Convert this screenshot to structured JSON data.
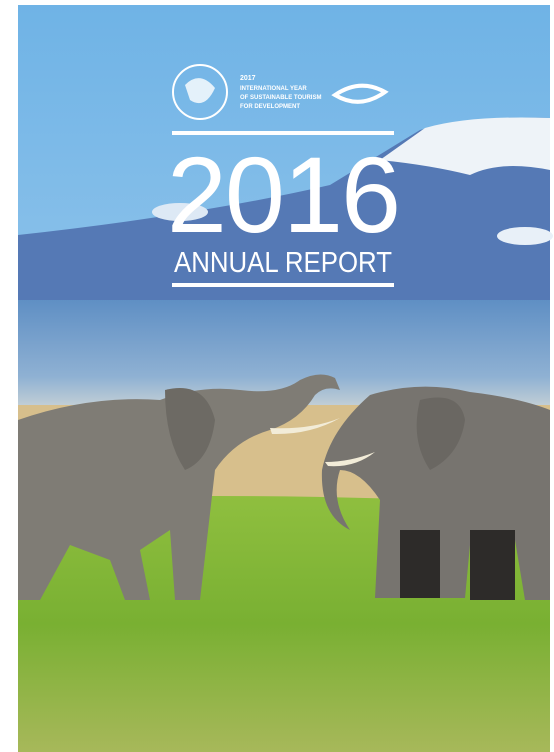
{
  "cover": {
    "emblem": {
      "year": "2017",
      "lines": [
        "INTERNATIONAL YEAR",
        "OF SUSTAINABLE TOURISM",
        "FOR DEVELOPMENT"
      ]
    },
    "title": "2016",
    "subtitle": "ANNUAL REPORT"
  }
}
